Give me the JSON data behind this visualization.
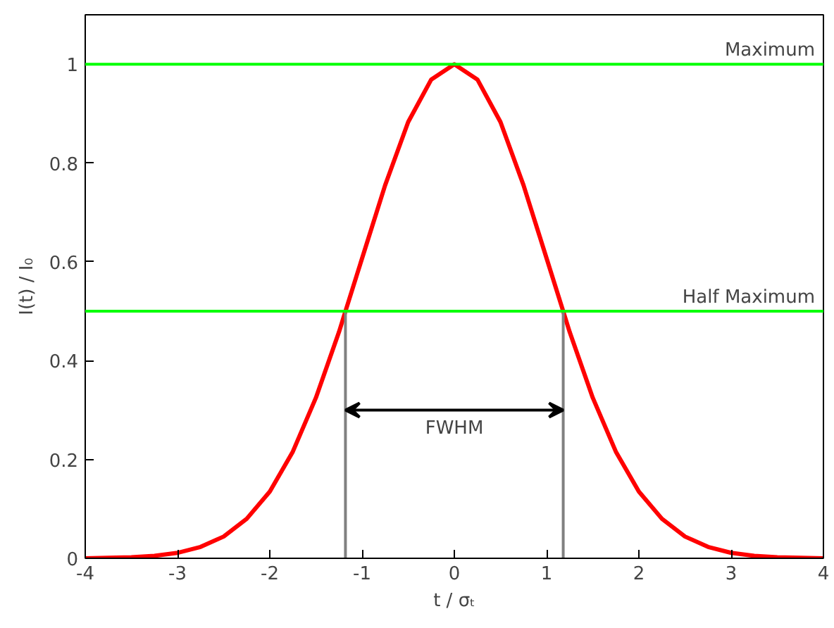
{
  "chart_data": {
    "type": "line",
    "xlabel": "t / σₜ",
    "ylabel": "I(t) / I₀",
    "xlim": [
      -4,
      4
    ],
    "ylim": [
      0,
      1.1
    ],
    "xticks": [
      -4,
      -3,
      -2,
      -1,
      0,
      1,
      2,
      3,
      4
    ],
    "yticks": [
      0,
      0.2,
      0.4,
      0.6,
      0.8,
      1
    ],
    "grid": false,
    "marker": "none",
    "line_style": "solid",
    "series": [
      {
        "color": "#ff0000",
        "x": [
          -4,
          -3.75,
          -3.5,
          -3.25,
          -3,
          -2.75,
          -2.5,
          -2.25,
          -2,
          -1.75,
          -1.5,
          -1.25,
          -1.18,
          -1,
          -0.75,
          -0.5,
          -0.25,
          0,
          0.25,
          0.5,
          0.75,
          1,
          1.18,
          1.25,
          1.5,
          1.75,
          2,
          2.25,
          2.5,
          2.75,
          3,
          3.25,
          3.5,
          3.75,
          4
        ],
        "values": [
          0,
          0.001,
          0.002,
          0.005,
          0.011,
          0.023,
          0.044,
          0.08,
          0.135,
          0.216,
          0.325,
          0.458,
          0.5,
          0.607,
          0.755,
          0.883,
          0.969,
          1,
          0.969,
          0.883,
          0.755,
          0.607,
          0.5,
          0.458,
          0.325,
          0.216,
          0.135,
          0.08,
          0.044,
          0.023,
          0.011,
          0.005,
          0.002,
          0.001,
          0
        ]
      },
      {
        "color": "#808080",
        "x": [
          -1.18,
          -1.18
        ],
        "values": [
          0,
          0.5
        ]
      },
      {
        "color": "#808080",
        "x": [
          1.18,
          1.18
        ],
        "values": [
          0,
          0.5
        ]
      }
    ],
    "ref_lines": [
      {
        "axis": "y",
        "value": 1,
        "label": "Maximum",
        "color": "#00ff00"
      },
      {
        "axis": "y",
        "value": 0.5,
        "label": "Half Maximum",
        "color": "#00ff00"
      }
    ],
    "annotations": [
      "FWHM"
    ]
  }
}
